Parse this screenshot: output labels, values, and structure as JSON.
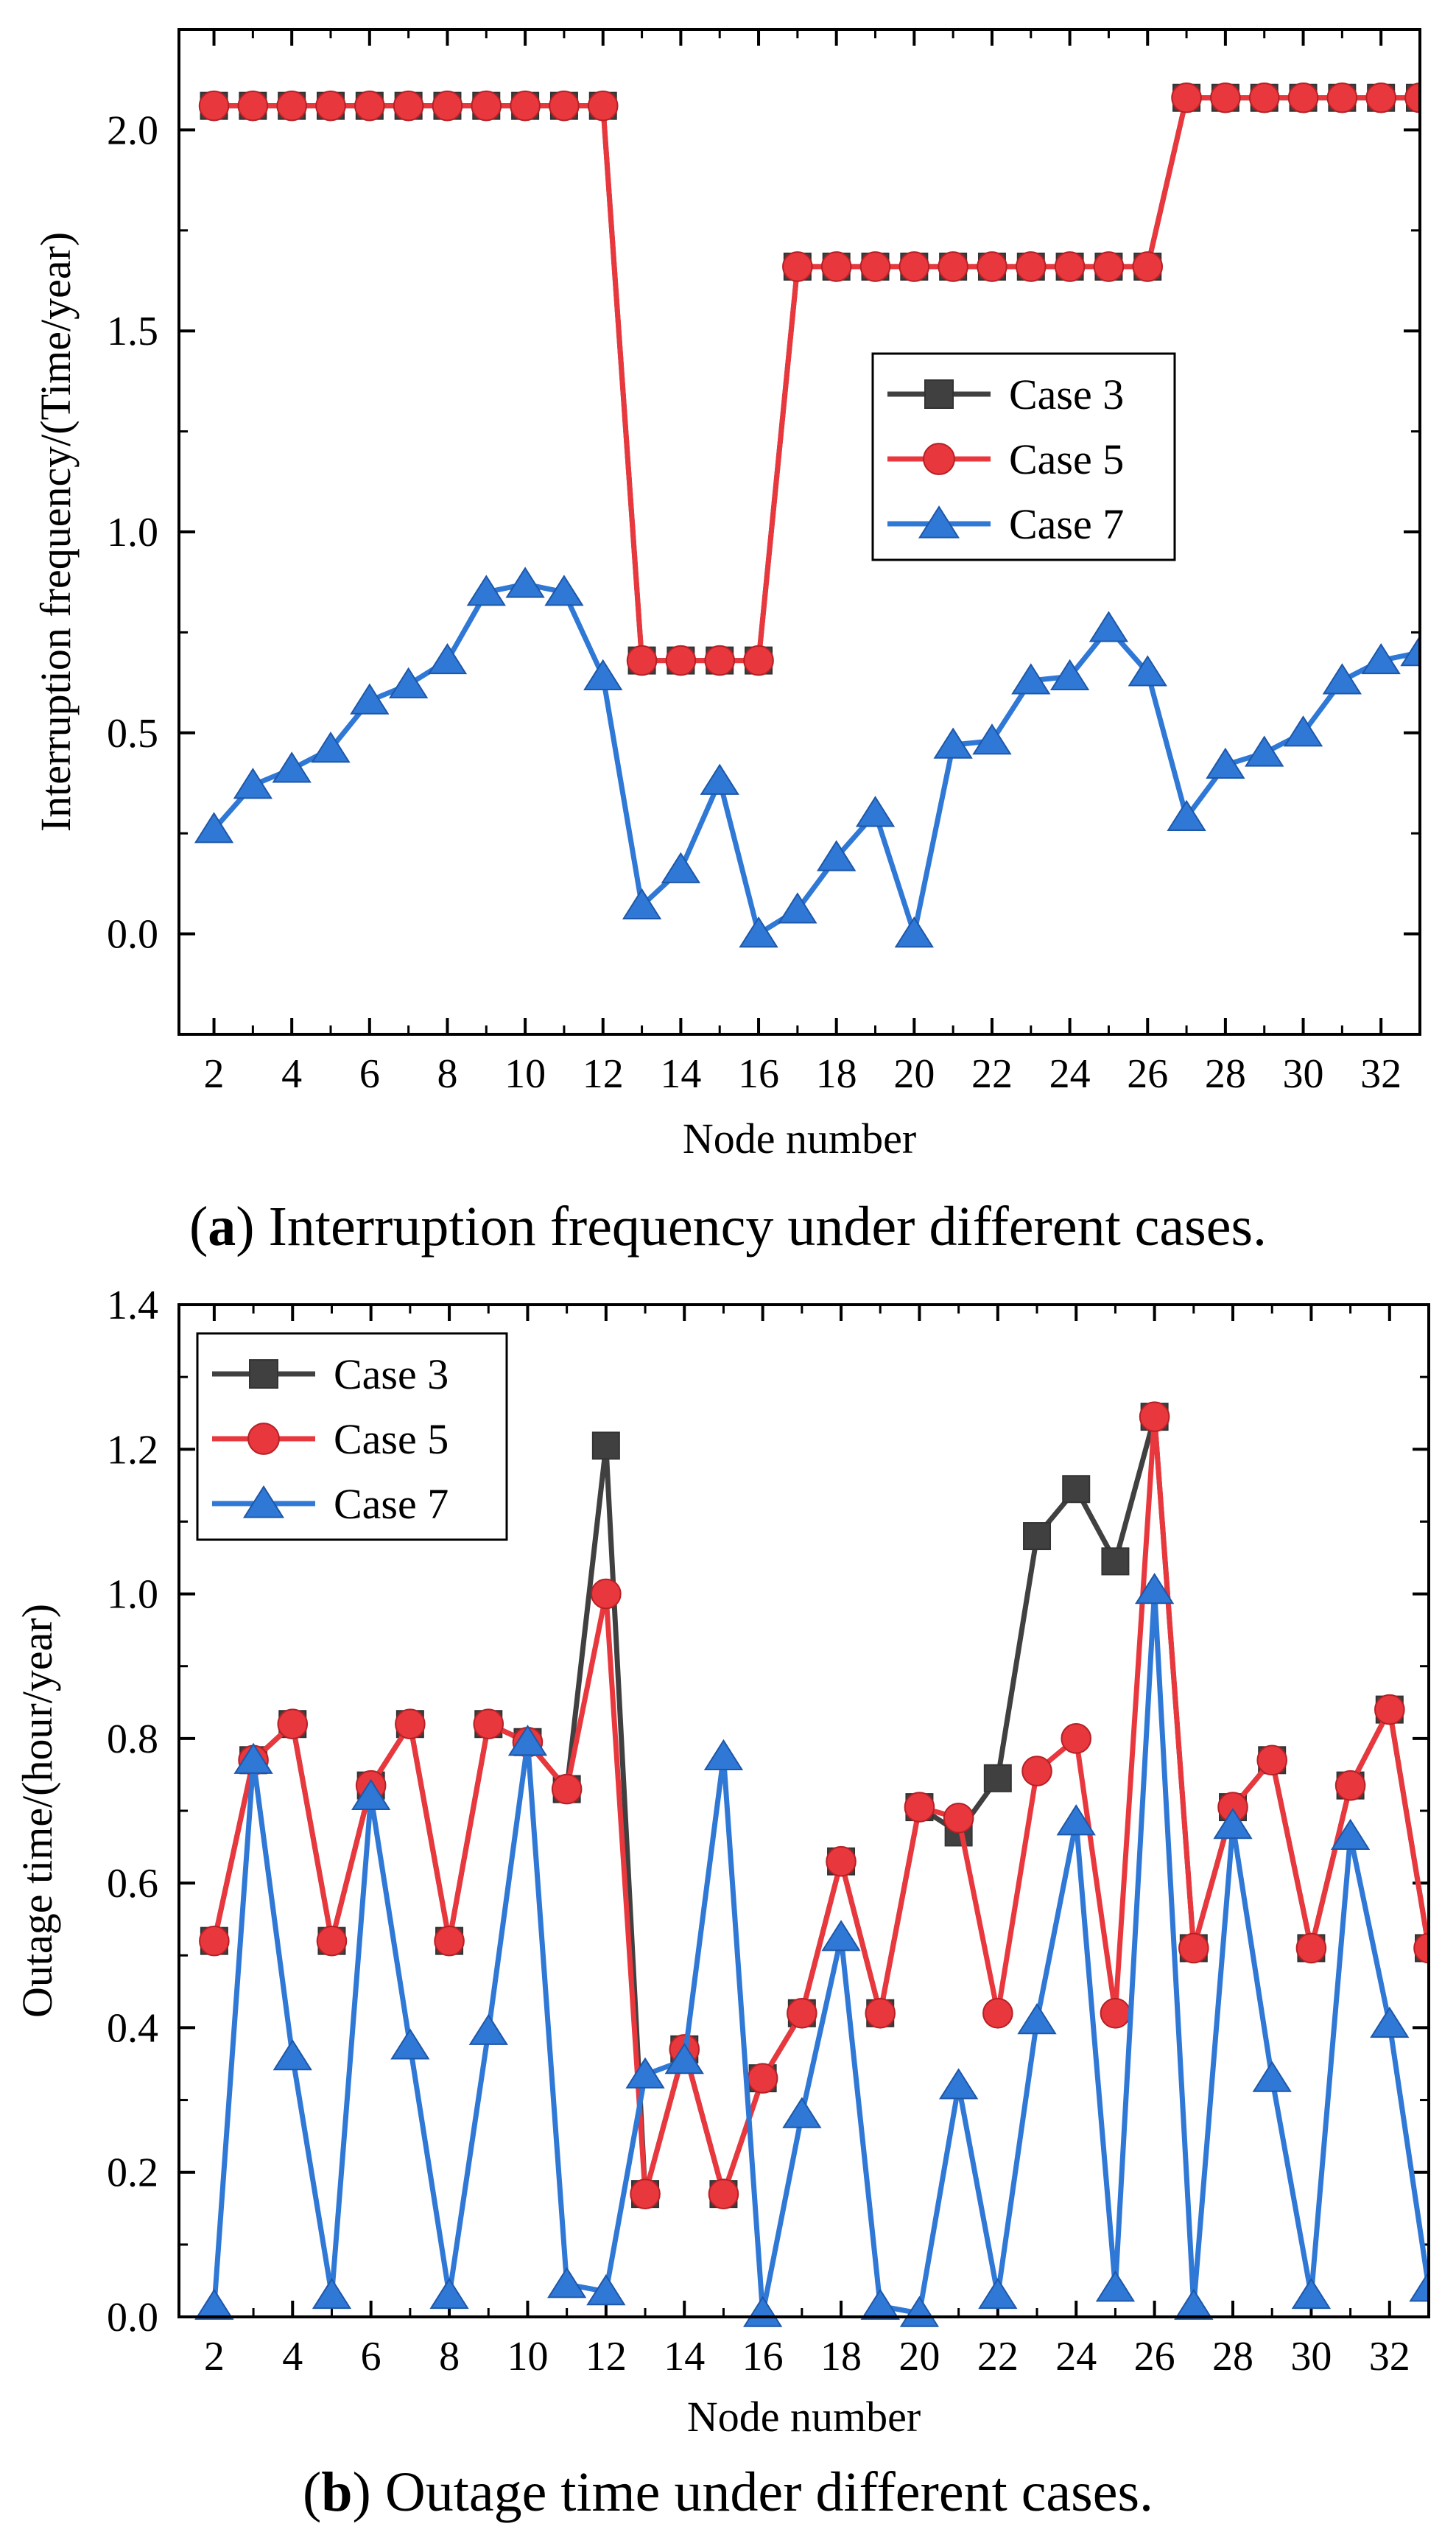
{
  "chart_data": [
    {
      "type": "line",
      "xlabel": "Node number",
      "ylabel": "Interruption frequency/(Time/year)",
      "xlim": [
        1.1,
        33
      ],
      "ylim": [
        -0.25,
        2.25
      ],
      "xticks": [
        2,
        4,
        6,
        8,
        10,
        12,
        14,
        16,
        18,
        20,
        22,
        24,
        26,
        28,
        30,
        32
      ],
      "yticks": [
        0.0,
        0.5,
        1.0,
        1.5,
        2.0
      ],
      "ytick_labels": [
        "0.0",
        "0.5",
        "1.0",
        "1.5",
        "2.0"
      ],
      "legend_position": "center-right",
      "grid": false,
      "x": [
        2,
        3,
        4,
        5,
        6,
        7,
        8,
        9,
        10,
        11,
        12,
        13,
        14,
        15,
        16,
        17,
        18,
        19,
        20,
        21,
        22,
        23,
        24,
        25,
        26,
        27,
        28,
        29,
        30,
        31,
        32,
        33
      ],
      "series": [
        {
          "name": "Case 3",
          "color": "#404040",
          "marker": "square",
          "values": [
            2.06,
            2.06,
            2.06,
            2.06,
            2.06,
            2.06,
            2.06,
            2.06,
            2.06,
            2.06,
            2.06,
            0.68,
            0.68,
            0.68,
            0.68,
            1.66,
            1.66,
            1.66,
            1.66,
            1.66,
            1.66,
            1.66,
            1.66,
            1.66,
            1.66,
            2.08,
            2.08,
            2.08,
            2.08,
            2.08,
            2.08,
            2.08
          ]
        },
        {
          "name": "Case 5",
          "color": "#e8383d",
          "marker": "circle",
          "values": [
            2.06,
            2.06,
            2.06,
            2.06,
            2.06,
            2.06,
            2.06,
            2.06,
            2.06,
            2.06,
            2.06,
            0.68,
            0.68,
            0.68,
            0.68,
            1.66,
            1.66,
            1.66,
            1.66,
            1.66,
            1.66,
            1.66,
            1.66,
            1.66,
            1.66,
            2.08,
            2.08,
            2.08,
            2.08,
            2.08,
            2.08,
            2.08
          ]
        },
        {
          "name": "Case 7",
          "color": "#2f78d6",
          "marker": "triangle",
          "values": [
            0.26,
            0.37,
            0.41,
            0.46,
            0.58,
            0.62,
            0.68,
            0.85,
            0.87,
            0.85,
            0.64,
            0.07,
            0.16,
            0.38,
            0.0,
            0.06,
            0.19,
            0.3,
            0.0,
            0.47,
            0.48,
            0.63,
            0.64,
            0.76,
            0.65,
            0.29,
            0.42,
            0.45,
            0.5,
            0.63,
            0.68,
            0.7
          ]
        }
      ]
    },
    {
      "type": "line",
      "xlabel": "Node number",
      "ylabel": "Outage time/(hour/year)",
      "xlim": [
        1.1,
        33
      ],
      "ylim": [
        0.0,
        1.4
      ],
      "xticks": [
        2,
        4,
        6,
        8,
        10,
        12,
        14,
        16,
        18,
        20,
        22,
        24,
        26,
        28,
        30,
        32
      ],
      "yticks": [
        0.0,
        0.2,
        0.4,
        0.6,
        0.8,
        1.0,
        1.2,
        1.4
      ],
      "ytick_labels": [
        "0.0",
        "0.2",
        "0.4",
        "0.6",
        "0.8",
        "1.0",
        "1.2",
        "1.4"
      ],
      "legend_position": "top-left",
      "grid": false,
      "x": [
        2,
        3,
        4,
        5,
        6,
        7,
        8,
        9,
        10,
        11,
        12,
        13,
        14,
        15,
        16,
        17,
        18,
        19,
        20,
        21,
        22,
        23,
        24,
        25,
        26,
        27,
        28,
        29,
        30,
        31,
        32,
        33
      ],
      "series": [
        {
          "name": "Case 3",
          "color": "#404040",
          "marker": "square",
          "values": [
            0.52,
            0.77,
            0.82,
            0.52,
            0.735,
            0.82,
            0.52,
            0.82,
            0.795,
            0.73,
            1.205,
            0.17,
            0.37,
            0.17,
            0.33,
            0.42,
            0.63,
            0.42,
            0.705,
            0.67,
            0.745,
            1.08,
            1.145,
            1.045,
            1.245,
            0.51,
            0.705,
            0.77,
            0.51,
            0.735,
            0.84,
            0.51
          ]
        },
        {
          "name": "Case 5",
          "color": "#e8383d",
          "marker": "circle",
          "values": [
            0.52,
            0.77,
            0.82,
            0.52,
            0.735,
            0.82,
            0.52,
            0.82,
            0.795,
            0.73,
            1.0,
            0.17,
            0.37,
            0.17,
            0.33,
            0.42,
            0.63,
            0.42,
            0.705,
            0.69,
            0.42,
            0.755,
            0.8,
            0.42,
            1.245,
            0.51,
            0.705,
            0.77,
            0.51,
            0.735,
            0.84,
            0.51
          ]
        },
        {
          "name": "Case 7",
          "color": "#2f78d6",
          "marker": "triangle",
          "values": [
            0.015,
            0.77,
            0.36,
            0.03,
            0.72,
            0.375,
            0.03,
            0.395,
            0.795,
            0.045,
            0.035,
            0.335,
            0.355,
            0.775,
            0.005,
            0.28,
            0.525,
            0.015,
            0.005,
            0.32,
            0.03,
            0.41,
            0.685,
            0.04,
            1.005,
            0.015,
            0.68,
            0.33,
            0.03,
            0.665,
            0.405,
            0.04
          ]
        }
      ]
    }
  ],
  "captions": [
    {
      "label": "a",
      "text": " Interruption frequency under different cases."
    },
    {
      "label": "b",
      "text": " Outage time under different cases."
    }
  ]
}
